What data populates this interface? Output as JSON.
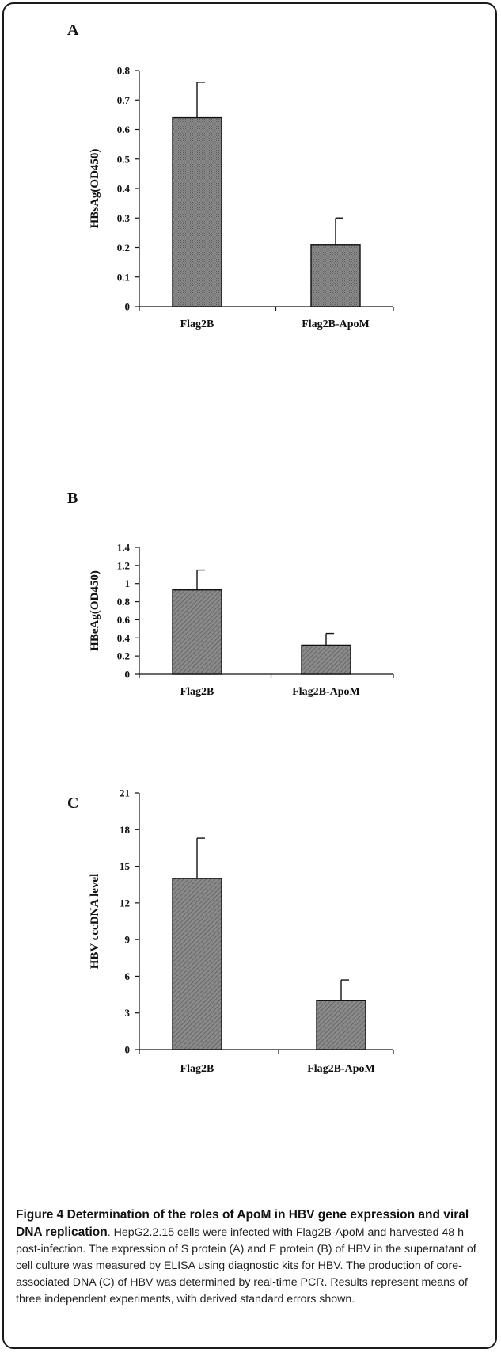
{
  "chart_data": [
    {
      "type": "bar",
      "panel": "A",
      "categories": [
        "Flag2B",
        "Flag2B-ApoM"
      ],
      "values": [
        0.64,
        0.21
      ],
      "errors": [
        0.12,
        0.09
      ],
      "ylabel": "HBsAg(OD450)",
      "ylim": [
        0,
        0.8
      ],
      "yticks": [
        "0",
        "0.1",
        "0.2",
        "0.3",
        "0.4",
        "0.5",
        "0.6",
        "0.7",
        "0.8"
      ],
      "pattern": "dots",
      "fill_color": "#8a8a8a"
    },
    {
      "type": "bar",
      "panel": "B",
      "categories": [
        "Flag2B",
        "Flag2B-ApoM"
      ],
      "values": [
        0.93,
        0.32
      ],
      "errors": [
        0.22,
        0.13
      ],
      "ylabel": "HBeAg(OD450)",
      "ylim": [
        0,
        1.4
      ],
      "yticks": [
        "0",
        "0.2",
        "0.4",
        "0.6",
        "0.8",
        "1",
        "1.2",
        "1.4"
      ],
      "pattern": "hatch",
      "fill_color": "#8a8a8a"
    },
    {
      "type": "bar",
      "panel": "C",
      "categories": [
        "Flag2B",
        "Flag2B-ApoM"
      ],
      "values": [
        14,
        4
      ],
      "errors": [
        3.3,
        1.7
      ],
      "ylabel": "HBV cccDNA level",
      "ylim": [
        0,
        21
      ],
      "yticks": [
        "0",
        "3",
        "6",
        "9",
        "12",
        "15",
        "18",
        "21"
      ],
      "pattern": "hatch",
      "fill_color": "#8a8a8a"
    }
  ],
  "caption": {
    "title": "Figure 4 Determination of the roles of ApoM in HBV gene expression and viral DNA replication",
    "body": ". HepG2.2.15 cells were infected with Flag2B-ApoM and harvested 48 h post-infection. The expression of S protein (A) and E protein (B) of HBV in the supernatant of cell culture was measured by ELISA using diagnostic kits for HBV. The production of core-associated DNA (C) of HBV was determined by real-time PCR. Results represent means of three independent experiments, with derived standard errors shown."
  }
}
